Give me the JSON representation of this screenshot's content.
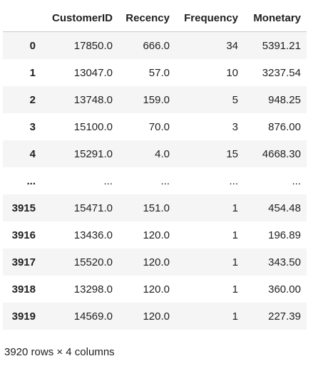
{
  "dataframe": {
    "columns": [
      "",
      "CustomerID",
      "Recency",
      "Frequency",
      "Monetary"
    ],
    "rows": [
      {
        "index": "0",
        "customer_id": "17850.0",
        "recency": "666.0",
        "frequency": "34",
        "monetary": "5391.21"
      },
      {
        "index": "1",
        "customer_id": "13047.0",
        "recency": "57.0",
        "frequency": "10",
        "monetary": "3237.54"
      },
      {
        "index": "2",
        "customer_id": "13748.0",
        "recency": "159.0",
        "frequency": "5",
        "monetary": "948.25"
      },
      {
        "index": "3",
        "customer_id": "15100.0",
        "recency": "70.0",
        "frequency": "3",
        "monetary": "876.00"
      },
      {
        "index": "4",
        "customer_id": "15291.0",
        "recency": "4.0",
        "frequency": "15",
        "monetary": "4668.30"
      },
      {
        "index": "...",
        "customer_id": "...",
        "recency": "...",
        "frequency": "...",
        "monetary": "..."
      },
      {
        "index": "3915",
        "customer_id": "15471.0",
        "recency": "151.0",
        "frequency": "1",
        "monetary": "454.48"
      },
      {
        "index": "3916",
        "customer_id": "13436.0",
        "recency": "120.0",
        "frequency": "1",
        "monetary": "196.89"
      },
      {
        "index": "3917",
        "customer_id": "15520.0",
        "recency": "120.0",
        "frequency": "1",
        "monetary": "343.50"
      },
      {
        "index": "3918",
        "customer_id": "13298.0",
        "recency": "120.0",
        "frequency": "1",
        "monetary": "360.00"
      },
      {
        "index": "3919",
        "customer_id": "14569.0",
        "recency": "120.0",
        "frequency": "1",
        "monetary": "227.39"
      }
    ],
    "shape_text": "3920 rows × 4 columns"
  }
}
